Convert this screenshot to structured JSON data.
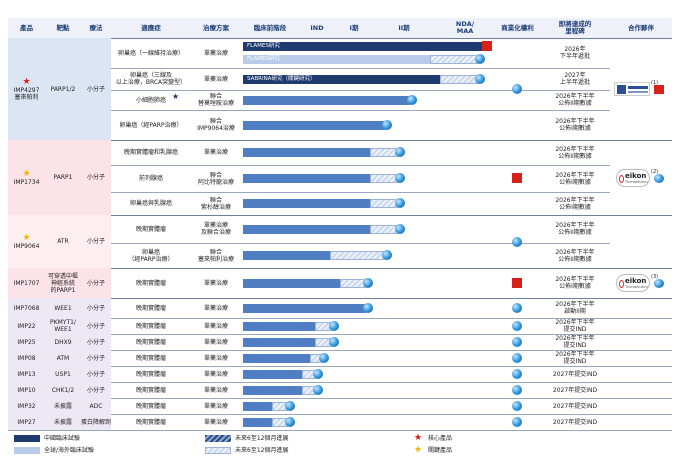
{
  "header": {
    "columns": [
      "產品",
      "靶點",
      "療法",
      "適應症",
      "治療方案",
      "臨床前階段",
      "IND",
      "I期",
      "II期",
      [
        "NDA/",
        "MAA"
      ],
      "商業化權利",
      [
        "即將達成的",
        "里程碑"
      ],
      "合作夥伴"
    ]
  },
  "products": [
    {
      "name": [
        "IMP4297",
        "塞來帕利"
      ],
      "target": "PARP1/2",
      "modality": "小分子",
      "partner": {
        "note": "(1)"
      },
      "indications": [
        {
          "indication": "卵巢癌（一線維持治療）",
          "regimen": "單藥治療",
          "studies": [
            "FLAMES研究",
            "FLAMES研究"
          ],
          "milestone": [
            "2026年",
            "下半年遞批"
          ]
        },
        {
          "indication": [
            "卵巢癌（三線及",
            "以上治療，BRCA突變型）"
          ],
          "regimen": "單藥治療",
          "studies": [
            "SABRINA研究（關鍵研究）"
          ],
          "milestone": [
            "2027年",
            "上半年遞批"
          ]
        },
        {
          "indication": "小細胞肺癌",
          "regimen": [
            "聯合",
            "替莫唑胺治療"
          ],
          "milestone": [
            "2026年下半年",
            "公佈II期數據"
          ]
        },
        {
          "indication": "卵巢癌（經PARP治療）",
          "regimen": [
            "聯合",
            "IMP9064治療"
          ],
          "milestone": [
            "2026年下半年",
            "公佈I期數據"
          ]
        }
      ]
    },
    {
      "name": [
        "IMP1734"
      ],
      "target": "PARP1",
      "modality": "小分子",
      "partner": {
        "name": "eikon",
        "sub": "Therapeutics",
        "note": "(2)"
      },
      "indications": [
        {
          "indication": "晚期實體瘤和乳腺癌",
          "regimen": "單藥治療",
          "milestone": [
            "2026年下半年",
            "公佈II期數據"
          ]
        },
        {
          "indication": "前列腺癌",
          "regimen": [
            "聯合",
            "阿比特龍治療"
          ],
          "milestone": [
            "2026年下半年",
            "公佈I期數據"
          ]
        },
        {
          "indication": "卵巢癌與乳腺癌",
          "regimen": [
            "聯合",
            "紫杉醇治療"
          ],
          "milestone": [
            "2026年下半年",
            "公佈I期數據"
          ]
        }
      ]
    },
    {
      "name": [
        "IMP9064"
      ],
      "target": "ATR",
      "modality": "小分子",
      "indications": [
        {
          "indication": "晚期實體瘤",
          "regimen": [
            "單藥治療",
            "及聯合治療"
          ],
          "milestone": [
            "2026年下半年",
            "公佈II期數據"
          ]
        },
        {
          "indication": [
            "卵巢癌",
            "（經PARP治療）"
          ],
          "regimen": [
            "聯合",
            "塞來帕利治療"
          ],
          "milestone": [
            "2026年下半年",
            "公佈II期數據"
          ]
        }
      ]
    },
    {
      "name": [
        "IMP1707"
      ],
      "target": [
        "可穿透中樞",
        "神經系統",
        "的PARP1"
      ],
      "modality": "小分子",
      "partner": {
        "name": "eikon",
        "sub": "Therapeutics",
        "note": "(3)"
      },
      "indications": [
        {
          "indication": "晚期實體瘤",
          "regimen": "單藥治療",
          "milestone": [
            "2026年下半年",
            "公佈I期數據"
          ]
        }
      ]
    },
    {
      "name": [
        "IMP7068"
      ],
      "target": "WEE1",
      "modality": "小分子",
      "indications": [
        {
          "indication": "晚期實體瘤",
          "regimen": "單藥治療",
          "milestone": [
            "2026年下半年",
            "啟動II期"
          ]
        }
      ]
    },
    {
      "name": [
        "IMP22"
      ],
      "target": [
        "PKMYT1/",
        "WEE1"
      ],
      "modality": "小分子",
      "indications": [
        {
          "indication": "晚期實體瘤",
          "regimen": "單藥治療",
          "milestone": [
            "2026年下半年",
            "提交IND"
          ]
        }
      ]
    },
    {
      "name": [
        "IMP25"
      ],
      "target": "DHX9",
      "modality": "小分子",
      "indications": [
        {
          "indication": "晚期實體瘤",
          "regimen": "單藥治療",
          "milestone": [
            "2026年下半年",
            "提交IND"
          ]
        }
      ]
    },
    {
      "name": [
        "IMP08"
      ],
      "target": "ATM",
      "modality": "小分子",
      "indications": [
        {
          "indication": "晚期實體瘤",
          "regimen": "單藥治療",
          "milestone": [
            "2026年下半年",
            "提交IND"
          ]
        }
      ]
    },
    {
      "name": [
        "IMP13"
      ],
      "target": "USP1",
      "modality": "小分子",
      "indications": [
        {
          "indication": "晚期實體瘤",
          "regimen": "單藥治療",
          "milestone": "2027年提交IND"
        }
      ]
    },
    {
      "name": [
        "IMP10"
      ],
      "target": "CHK1/2",
      "modality": "小分子",
      "indications": [
        {
          "indication": "晚期實體瘤",
          "regimen": "單藥治療",
          "milestone": "2027年提交IND"
        }
      ]
    },
    {
      "name": [
        "IMP32"
      ],
      "target": "未披露",
      "modality": "ADC",
      "indications": [
        {
          "indication": "晚期實體瘤",
          "regimen": "單藥治療",
          "milestone": "2027年提交IND"
        }
      ]
    },
    {
      "name": [
        "IMP27"
      ],
      "target": "未披露",
      "modality": "蛋白降解劑",
      "indications": [
        {
          "indication": "晚期實體瘤",
          "regimen": "單藥治療",
          "milestone": "2027年提交IND"
        }
      ]
    }
  ],
  "legend": [
    "中國臨床試驗",
    "全球/海外臨床試驗",
    "未來6至12個月進展",
    "未來6至12個月進展",
    "核心產品",
    "關鍵產品"
  ]
}
